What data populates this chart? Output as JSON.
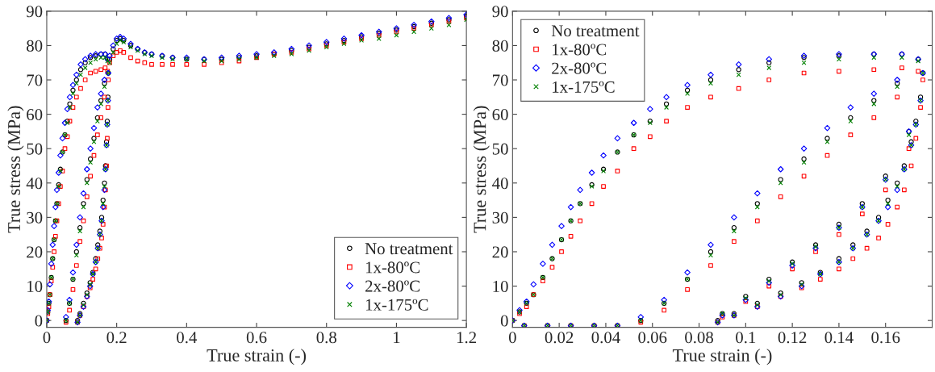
{
  "chart_data": [
    {
      "type": "scatter",
      "xlabel": "True strain (-)",
      "ylabel": "True stress (MPa)",
      "xlim": [
        0,
        1.2
      ],
      "ylim": [
        -2,
        90
      ],
      "xticks": [
        0,
        0.2,
        0.4,
        0.6,
        0.8,
        1,
        1.2
      ],
      "yticks": [
        0,
        10,
        20,
        30,
        40,
        50,
        60,
        70,
        80,
        90
      ],
      "grid": false,
      "legend": "bottom right",
      "series": [
        {
          "name": "No treatment",
          "color": "#000000",
          "marker": "circle",
          "x": [
            0,
            0.003,
            0.006,
            0.009,
            0.013,
            0.017,
            0.021,
            0.025,
            0.029,
            0.034,
            0.039,
            0.045,
            0.052,
            0.059,
            0.066,
            0.075,
            0.085,
            0.097,
            0.11,
            0.125,
            0.14,
            0.155,
            0.167,
            0.174,
            0.176,
            0.175,
            0.173,
            0.171,
            0.168,
            0.165,
            0.161,
            0.157,
            0.152,
            0.146,
            0.14,
            0.132,
            0.124,
            0.115,
            0.105,
            0.095,
            0.088,
            0.055,
            0.065,
            0.075,
            0.085,
            0.095,
            0.105,
            0.115,
            0.125,
            0.135,
            0.145,
            0.155,
            0.165,
            0.18,
            0.19,
            0.2,
            0.21,
            0.22,
            0.24,
            0.26,
            0.28,
            0.3,
            0.33,
            0.36,
            0.4,
            0.45,
            0.5,
            0.55,
            0.6,
            0.65,
            0.7,
            0.75,
            0.8,
            0.85,
            0.9,
            0.95,
            1.0,
            1.05,
            1.1,
            1.15,
            1.2
          ],
          "values": [
            0,
            2.5,
            5,
            7.5,
            12.5,
            18,
            23.5,
            29,
            34,
            39.5,
            44,
            49,
            54,
            58,
            63,
            67,
            70,
            73,
            75,
            76.5,
            77,
            77.5,
            77.5,
            76,
            72,
            65,
            58,
            52,
            45,
            40,
            35,
            30,
            26,
            22,
            18,
            14,
            11,
            8,
            5,
            2,
            0,
            0,
            5,
            12,
            20,
            27,
            34,
            41,
            47,
            53,
            59,
            64,
            69,
            76,
            79,
            81.5,
            82,
            81.5,
            80,
            79,
            78,
            77.5,
            77,
            76.5,
            76,
            76,
            76,
            76.5,
            77,
            77.5,
            78.5,
            79.5,
            80.5,
            81.5,
            82.5,
            83.5,
            84.5,
            85.5,
            86.5,
            87.5,
            88.5
          ]
        },
        {
          "name": "1x-80ºC",
          "color": "#ff0000",
          "marker": "square",
          "x": [
            0,
            0.003,
            0.006,
            0.009,
            0.013,
            0.017,
            0.021,
            0.025,
            0.029,
            0.034,
            0.039,
            0.045,
            0.052,
            0.059,
            0.066,
            0.075,
            0.085,
            0.097,
            0.11,
            0.125,
            0.14,
            0.155,
            0.167,
            0.174,
            0.176,
            0.175,
            0.173,
            0.171,
            0.168,
            0.165,
            0.161,
            0.157,
            0.152,
            0.146,
            0.14,
            0.132,
            0.124,
            0.115,
            0.105,
            0.095,
            0.088,
            0.055,
            0.065,
            0.075,
            0.085,
            0.095,
            0.105,
            0.115,
            0.125,
            0.135,
            0.145,
            0.155,
            0.165,
            0.18,
            0.19,
            0.2,
            0.21,
            0.22,
            0.24,
            0.26,
            0.28,
            0.3,
            0.33,
            0.36,
            0.4,
            0.45,
            0.5,
            0.55,
            0.6,
            0.65,
            0.7,
            0.75,
            0.8,
            0.85,
            0.9,
            0.95,
            1.0,
            1.05,
            1.1,
            1.15,
            1.2
          ],
          "values": [
            0,
            2,
            4,
            7.5,
            11.5,
            15.5,
            20,
            24.5,
            29,
            34,
            39,
            43.5,
            50,
            53.5,
            58,
            62,
            65,
            67.5,
            70,
            72,
            72.5,
            73,
            73.5,
            72.5,
            70,
            62,
            53,
            45,
            38,
            33,
            28,
            24,
            21,
            18,
            15,
            12,
            9.5,
            7,
            4,
            1.5,
            -0.5,
            -0.5,
            3,
            9,
            16,
            23,
            29,
            36,
            42,
            48,
            54,
            59,
            65,
            75,
            77,
            78,
            78.5,
            78,
            76.5,
            75.5,
            75,
            74.5,
            74.5,
            74.5,
            74.5,
            74.5,
            75,
            75.5,
            76.5,
            77.5,
            78,
            79,
            80,
            81,
            82,
            83,
            84,
            85,
            86,
            87,
            88
          ]
        },
        {
          "name": "2x-80ºC",
          "color": "#0000ff",
          "marker": "diamond",
          "x": [
            0,
            0.003,
            0.006,
            0.009,
            0.013,
            0.017,
            0.021,
            0.025,
            0.029,
            0.034,
            0.039,
            0.045,
            0.052,
            0.059,
            0.066,
            0.075,
            0.085,
            0.097,
            0.11,
            0.125,
            0.14,
            0.155,
            0.167,
            0.174,
            0.176,
            0.175,
            0.173,
            0.171,
            0.168,
            0.165,
            0.161,
            0.157,
            0.152,
            0.146,
            0.14,
            0.132,
            0.124,
            0.115,
            0.105,
            0.095,
            0.088,
            0.055,
            0.065,
            0.075,
            0.085,
            0.095,
            0.105,
            0.115,
            0.125,
            0.135,
            0.145,
            0.155,
            0.165,
            0.18,
            0.19,
            0.2,
            0.21,
            0.22,
            0.24,
            0.26,
            0.28,
            0.3,
            0.33,
            0.36,
            0.4,
            0.45,
            0.5,
            0.55,
            0.6,
            0.65,
            0.7,
            0.75,
            0.8,
            0.85,
            0.9,
            0.95,
            1.0,
            1.05,
            1.1,
            1.15,
            1.2
          ],
          "values": [
            0,
            3,
            5.5,
            10.5,
            16.5,
            22,
            27.5,
            33,
            38,
            43,
            48,
            53,
            57.5,
            61.5,
            65,
            68.5,
            71.5,
            74.5,
            76,
            77,
            77.5,
            77.5,
            77.5,
            76,
            72,
            64,
            57,
            51,
            44,
            38,
            33,
            29,
            25,
            21,
            17,
            13.5,
            10,
            7,
            4,
            1.5,
            -0.5,
            1,
            6,
            14,
            22,
            30,
            37,
            44,
            50,
            56,
            62,
            66,
            70,
            77,
            80,
            82,
            82.5,
            82,
            80.5,
            79,
            78,
            77.5,
            77,
            76.5,
            76.5,
            76,
            76.5,
            77,
            77.5,
            78,
            79,
            80,
            81,
            82,
            83,
            84,
            85,
            86,
            87,
            88,
            89
          ]
        },
        {
          "name": "1x-175ºC",
          "color": "#008000",
          "marker": "cross",
          "x": [
            0,
            0.003,
            0.006,
            0.009,
            0.013,
            0.017,
            0.021,
            0.025,
            0.029,
            0.034,
            0.039,
            0.045,
            0.052,
            0.059,
            0.066,
            0.075,
            0.085,
            0.097,
            0.11,
            0.125,
            0.14,
            0.155,
            0.167,
            0.174,
            0.176,
            0.175,
            0.173,
            0.171,
            0.168,
            0.165,
            0.161,
            0.157,
            0.152,
            0.146,
            0.14,
            0.132,
            0.124,
            0.115,
            0.105,
            0.095,
            0.088,
            0.055,
            0.065,
            0.075,
            0.085,
            0.095,
            0.105,
            0.115,
            0.125,
            0.135,
            0.145,
            0.155,
            0.165,
            0.18,
            0.19,
            0.2,
            0.21,
            0.22,
            0.24,
            0.26,
            0.28,
            0.3,
            0.33,
            0.36,
            0.4,
            0.45,
            0.5,
            0.55,
            0.6,
            0.65,
            0.7,
            0.75,
            0.8,
            0.85,
            0.9,
            0.95,
            1.0,
            1.05,
            1.1,
            1.15,
            1.2
          ],
          "values": [
            0,
            2.5,
            5,
            7.5,
            12.5,
            18,
            23.5,
            29,
            34,
            39,
            43.5,
            49,
            54,
            57.5,
            62,
            66,
            69,
            71.5,
            73.5,
            75,
            76,
            76.5,
            76.5,
            75.5,
            72,
            64,
            57,
            51,
            44,
            39,
            34,
            29,
            25,
            21,
            17,
            13.5,
            10.5,
            7.5,
            4.5,
            1.5,
            -0.5,
            0,
            5,
            12,
            19,
            26,
            33,
            40,
            46,
            52,
            58,
            63,
            68,
            75,
            78,
            80.5,
            81.5,
            81,
            79.5,
            78.5,
            77.5,
            77,
            76.5,
            76,
            76,
            75.5,
            75.5,
            76,
            76.5,
            77,
            77.5,
            78.5,
            79.5,
            80.5,
            81.5,
            82,
            83,
            84,
            85,
            86,
            87.5
          ]
        }
      ]
    },
    {
      "type": "scatter",
      "xlabel": "True strain (-)",
      "ylabel": "True stress (MPa)",
      "xlim": [
        0,
        0.18
      ],
      "ylim": [
        -2,
        90
      ],
      "xticks": [
        0,
        0.02,
        0.04,
        0.06,
        0.08,
        0.1,
        0.12,
        0.14,
        0.16
      ],
      "yticks": [
        0,
        10,
        20,
        30,
        40,
        50,
        60,
        70,
        80,
        90
      ],
      "grid": false,
      "legend": "top left",
      "series": [
        {
          "name": "No treatment",
          "color": "#000000",
          "marker": "circle",
          "x": [
            0,
            0.003,
            0.006,
            0.009,
            0.013,
            0.017,
            0.021,
            0.025,
            0.029,
            0.034,
            0.039,
            0.045,
            0.052,
            0.059,
            0.066,
            0.075,
            0.085,
            0.097,
            0.11,
            0.125,
            0.14,
            0.155,
            0.167,
            0.174,
            0.176,
            0.175,
            0.173,
            0.171,
            0.168,
            0.165,
            0.161,
            0.157,
            0.152,
            0.146,
            0.14,
            0.132,
            0.124,
            0.115,
            0.105,
            0.095,
            0.088,
            0.09,
            0.1,
            0.11,
            0.12,
            0.13,
            0.14,
            0.15,
            0.16,
            0.17,
            0.055,
            0.065,
            0.075,
            0.085,
            0.095,
            0.105,
            0.115,
            0.125,
            0.135,
            0.145,
            0.155,
            0.165,
            0.005,
            0.015,
            0.025,
            0.035,
            0.045
          ],
          "values": [
            0,
            2.5,
            5,
            7.5,
            12.5,
            18,
            23.5,
            29,
            34,
            39.5,
            44,
            49,
            54,
            58,
            63,
            67,
            70,
            73,
            75,
            76.5,
            77,
            77.5,
            77.5,
            76,
            72,
            65,
            58,
            52,
            45,
            40,
            35,
            30,
            26,
            22,
            18,
            14,
            11,
            8,
            5,
            2,
            0,
            2,
            7,
            12,
            17,
            22,
            28,
            34,
            42,
            55,
            0,
            5,
            12,
            20,
            27,
            34,
            41,
            47,
            53,
            59,
            64,
            69,
            -1.5,
            -1.5,
            -1.5,
            -1.5,
            -1.5
          ]
        },
        {
          "name": "1x-80ºC",
          "color": "#ff0000",
          "marker": "square",
          "x": [
            0,
            0.003,
            0.006,
            0.009,
            0.013,
            0.017,
            0.021,
            0.025,
            0.029,
            0.034,
            0.039,
            0.045,
            0.052,
            0.059,
            0.066,
            0.075,
            0.085,
            0.097,
            0.11,
            0.125,
            0.14,
            0.155,
            0.167,
            0.174,
            0.176,
            0.175,
            0.173,
            0.171,
            0.168,
            0.165,
            0.161,
            0.157,
            0.152,
            0.146,
            0.14,
            0.132,
            0.124,
            0.115,
            0.105,
            0.095,
            0.088,
            0.09,
            0.1,
            0.11,
            0.12,
            0.13,
            0.14,
            0.15,
            0.16,
            0.17,
            0.055,
            0.065,
            0.075,
            0.085,
            0.095,
            0.105,
            0.115,
            0.125,
            0.135,
            0.145,
            0.155,
            0.165,
            0.005,
            0.015,
            0.025,
            0.035,
            0.045
          ],
          "values": [
            0,
            2,
            4,
            7.5,
            11.5,
            15.5,
            20,
            24.5,
            29,
            34,
            39,
            43.5,
            50,
            53.5,
            58,
            62,
            65,
            67.5,
            70,
            72,
            72.5,
            73,
            73.5,
            72.5,
            70,
            62,
            53,
            45,
            38,
            33,
            28,
            24,
            21,
            18,
            15,
            12,
            9.5,
            7,
            4,
            1.5,
            -0.5,
            1,
            5.5,
            10,
            15,
            20,
            25,
            31,
            38,
            50,
            -0.5,
            3,
            9,
            16,
            23,
            29,
            36,
            42,
            48,
            54,
            59,
            65,
            -1.5,
            -1.5,
            -1.5,
            -1.5,
            -1.5
          ]
        },
        {
          "name": "2x-80ºC",
          "color": "#0000ff",
          "marker": "diamond",
          "x": [
            0,
            0.003,
            0.006,
            0.009,
            0.013,
            0.017,
            0.021,
            0.025,
            0.029,
            0.034,
            0.039,
            0.045,
            0.052,
            0.059,
            0.066,
            0.075,
            0.085,
            0.097,
            0.11,
            0.125,
            0.14,
            0.155,
            0.167,
            0.174,
            0.176,
            0.175,
            0.173,
            0.171,
            0.168,
            0.165,
            0.161,
            0.157,
            0.152,
            0.146,
            0.14,
            0.132,
            0.124,
            0.115,
            0.105,
            0.095,
            0.088,
            0.09,
            0.1,
            0.11,
            0.12,
            0.13,
            0.14,
            0.15,
            0.16,
            0.17,
            0.055,
            0.065,
            0.075,
            0.085,
            0.095,
            0.105,
            0.115,
            0.125,
            0.135,
            0.145,
            0.155,
            0.165,
            0.005,
            0.015,
            0.025,
            0.035,
            0.045
          ],
          "values": [
            0,
            3,
            5.5,
            10.5,
            16.5,
            22,
            27.5,
            33,
            38,
            43,
            48,
            53,
            57.5,
            61.5,
            65,
            68.5,
            71.5,
            74.5,
            76,
            77,
            77.5,
            77.5,
            77.5,
            76,
            72,
            64,
            57,
            51,
            44,
            38,
            33,
            29,
            25,
            21,
            17,
            13.5,
            10,
            7,
            4,
            1.5,
            -0.5,
            1.5,
            6,
            11,
            16,
            21,
            27,
            33,
            41,
            55,
            1,
            6,
            14,
            22,
            30,
            37,
            44,
            50,
            56,
            62,
            66,
            70,
            -1.5,
            -1.5,
            -1.5,
            -1.5,
            -1.5
          ]
        },
        {
          "name": "1x-175ºC",
          "color": "#008000",
          "marker": "cross",
          "x": [
            0,
            0.003,
            0.006,
            0.009,
            0.013,
            0.017,
            0.021,
            0.025,
            0.029,
            0.034,
            0.039,
            0.045,
            0.052,
            0.059,
            0.066,
            0.075,
            0.085,
            0.097,
            0.11,
            0.125,
            0.14,
            0.155,
            0.167,
            0.174,
            0.176,
            0.175,
            0.173,
            0.171,
            0.168,
            0.165,
            0.161,
            0.157,
            0.152,
            0.146,
            0.14,
            0.132,
            0.124,
            0.115,
            0.105,
            0.095,
            0.088,
            0.09,
            0.1,
            0.11,
            0.12,
            0.13,
            0.14,
            0.15,
            0.16,
            0.17,
            0.055,
            0.065,
            0.075,
            0.085,
            0.095,
            0.105,
            0.115,
            0.125,
            0.135,
            0.145,
            0.155,
            0.165,
            0.005,
            0.015,
            0.025,
            0.035,
            0.045
          ],
          "values": [
            0,
            2.5,
            5,
            7.5,
            12.5,
            18,
            23.5,
            29,
            34,
            39,
            43.5,
            49,
            54,
            57.5,
            62,
            66,
            69,
            71.5,
            73.5,
            75,
            76,
            76.5,
            76.5,
            75.5,
            72,
            64,
            57,
            51,
            44,
            39,
            34,
            29,
            25,
            21,
            17,
            13.5,
            10.5,
            7.5,
            4.5,
            1.5,
            -0.5,
            2,
            6.5,
            11.5,
            16.5,
            21.5,
            27,
            33,
            41,
            54,
            0,
            5,
            12,
            19,
            26,
            33,
            40,
            46,
            52,
            58,
            63,
            68,
            -1.5,
            -1.5,
            -1.5,
            -1.5,
            -1.5
          ]
        }
      ]
    }
  ]
}
